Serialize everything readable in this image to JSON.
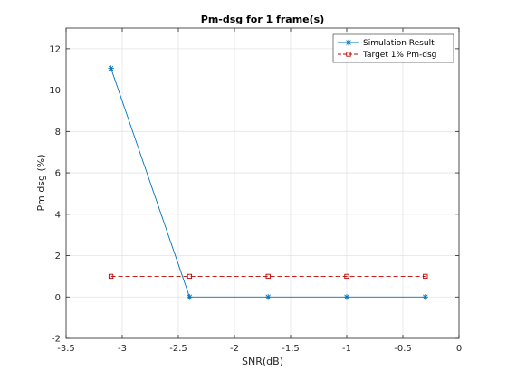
{
  "chart_data": {
    "type": "line",
    "title": "Pm-dsg for 1 frame(s)",
    "xlabel": "SNR(dB)",
    "ylabel": "Pm dsg (%)",
    "xlim": [
      -3.5,
      0
    ],
    "ylim": [
      -2,
      13
    ],
    "xticks": [
      -3.5,
      -3,
      -2.5,
      -2,
      -1.5,
      -1,
      -0.5,
      0
    ],
    "xtick_labels": [
      "-3.5",
      "-3",
      "-2.5",
      "-2",
      "-1.5",
      "-1",
      "-0.5",
      "0"
    ],
    "yticks": [
      -2,
      0,
      2,
      4,
      6,
      8,
      10,
      12
    ],
    "ytick_labels": [
      "-2",
      "0",
      "2",
      "4",
      "6",
      "8",
      "10",
      "12"
    ],
    "grid": true,
    "legend_position": "top-right",
    "x": [
      -3.1,
      -2.4,
      -1.7,
      -1.0,
      -0.3
    ],
    "series": [
      {
        "name": "Simulation Result",
        "values": [
          11.05,
          0,
          0,
          0,
          0
        ],
        "color": "#0072BD",
        "marker": "asterisk",
        "line": "solid"
      },
      {
        "name": "Target 1% Pm-dsg",
        "values": [
          1,
          1,
          1,
          1,
          1
        ],
        "color": "#C00000",
        "marker": "square",
        "line": "dashed"
      }
    ]
  }
}
